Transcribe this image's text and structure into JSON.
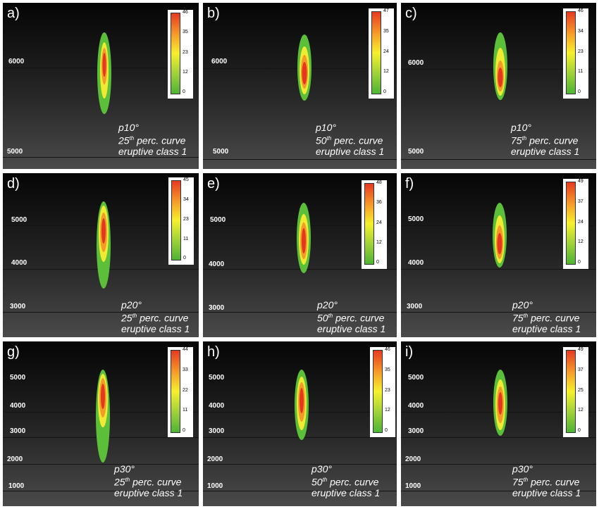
{
  "panels": [
    {
      "label": "a)",
      "angle": "p10°",
      "percentile": "25",
      "curve": "perc. curve",
      "eruptive_class": "eruptive class 1",
      "altitude_ticks": [
        "6000",
        "5000"
      ],
      "colorbar_ticks": [
        "46",
        "35",
        "23",
        "12",
        "0"
      ]
    },
    {
      "label": "b)",
      "angle": "p10°",
      "percentile": "50",
      "curve": "perc. curve",
      "eruptive_class": "eruptive class 1",
      "altitude_ticks": [
        "6000",
        "5000"
      ],
      "colorbar_ticks": [
        "47",
        "35",
        "24",
        "12",
        "0"
      ]
    },
    {
      "label": "c)",
      "angle": "p10°",
      "percentile": "75",
      "curve": "perc. curve",
      "eruptive_class": "eruptive class 1",
      "altitude_ticks": [
        "6000",
        "5000"
      ],
      "colorbar_ticks": [
        "46",
        "34",
        "23",
        "11",
        "0"
      ]
    },
    {
      "label": "d)",
      "angle": "p20°",
      "percentile": "25",
      "curve": "perc. curve",
      "eruptive_class": "eruptive class 1",
      "altitude_ticks": [
        "5000",
        "4000",
        "3000"
      ],
      "colorbar_ticks": [
        "45",
        "34",
        "23",
        "11",
        "0"
      ]
    },
    {
      "label": "e)",
      "angle": "p20°",
      "percentile": "50",
      "curve": "perc. curve",
      "eruptive_class": "eruptive class 1",
      "altitude_ticks": [
        "5000",
        "4000",
        "3000"
      ],
      "colorbar_ticks": [
        "48",
        "36",
        "24",
        "12",
        "0"
      ]
    },
    {
      "label": "f)",
      "angle": "p20°",
      "percentile": "75",
      "curve": "perc. curve",
      "eruptive_class": "eruptive class 1",
      "altitude_ticks": [
        "5000",
        "4000",
        "3000"
      ],
      "colorbar_ticks": [
        "49",
        "37",
        "24",
        "12",
        "0"
      ]
    },
    {
      "label": "g)",
      "angle": "p30°",
      "percentile": "25",
      "curve": "perc. curve",
      "eruptive_class": "eruptive class 1",
      "altitude_ticks": [
        "5000",
        "4000",
        "3000",
        "2000",
        "1000"
      ],
      "colorbar_ticks": [
        "44",
        "33",
        "22",
        "11",
        "0"
      ]
    },
    {
      "label": "h)",
      "angle": "p30°",
      "percentile": "50",
      "curve": "perc. curve",
      "eruptive_class": "eruptive class 1",
      "altitude_ticks": [
        "5000",
        "4000",
        "3000",
        "2000",
        "1000"
      ],
      "colorbar_ticks": [
        "46",
        "35",
        "23",
        "12",
        "0"
      ]
    },
    {
      "label": "i)",
      "angle": "p30°",
      "percentile": "75",
      "curve": "perc. curve",
      "eruptive_class": "eruptive class 1",
      "altitude_ticks": [
        "5000",
        "4000",
        "3000",
        "2000",
        "1000"
      ],
      "colorbar_ticks": [
        "49",
        "37",
        "25",
        "12",
        "0"
      ]
    }
  ],
  "colors": {
    "colorbar_low": "#4fb336",
    "colorbar_mid": "#f6f02e",
    "colorbar_high": "#e63a22",
    "background_top": "#050505",
    "background_bottom": "#4a4a4a"
  }
}
